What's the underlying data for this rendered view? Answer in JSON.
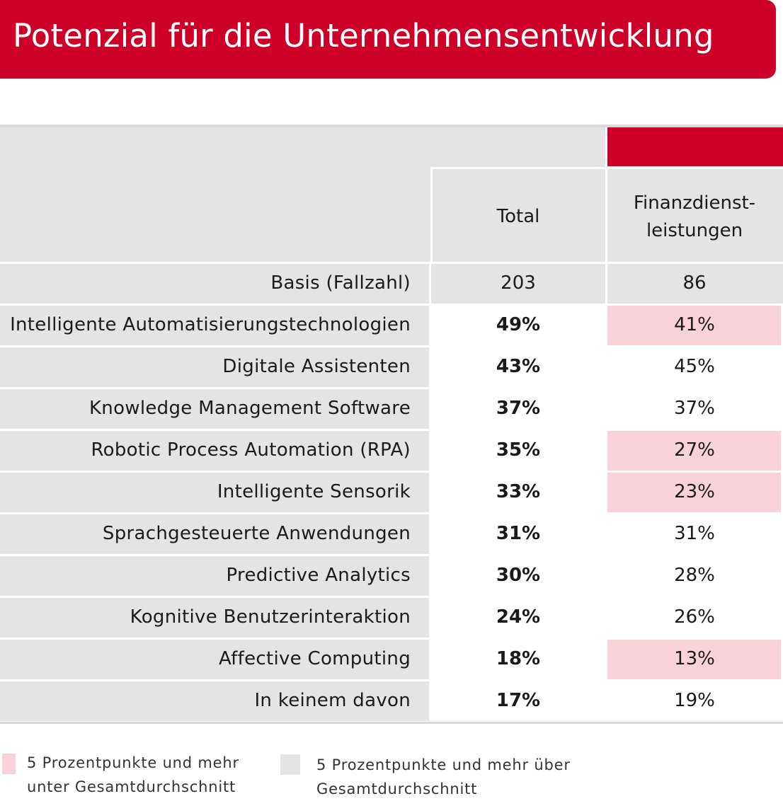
{
  "title": "Potenzial für die Unternehmensentwicklung",
  "colors": {
    "brand": "#cc0029",
    "header_gray": "#e4e4e4",
    "below_highlight": "#f8d2d8",
    "above_highlight": "#e4e4e4"
  },
  "chart_data": {
    "type": "table",
    "columns": [
      "Total",
      "Finanzdienst-\nleistungen"
    ],
    "column_header_lines": [
      [
        "Total"
      ],
      [
        "Finanzdienst-",
        "leistungen"
      ]
    ],
    "base_label": "Basis (Fallzahl)",
    "base_values": [
      "203",
      "86"
    ],
    "rows": [
      {
        "label": "Intelligente Automatisierungstechnologien",
        "total": "49%",
        "fin": "41%",
        "fin_flag": "below"
      },
      {
        "label": "Digitale Assistenten",
        "total": "43%",
        "fin": "45%",
        "fin_flag": "none"
      },
      {
        "label": "Knowledge Management Software",
        "total": "37%",
        "fin": "37%",
        "fin_flag": "none"
      },
      {
        "label": "Robotic Process Automation (RPA)",
        "total": "35%",
        "fin": "27%",
        "fin_flag": "below"
      },
      {
        "label": "Intelligente Sensorik",
        "total": "33%",
        "fin": "23%",
        "fin_flag": "below"
      },
      {
        "label": "Sprachgesteuerte Anwendungen",
        "total": "31%",
        "fin": "31%",
        "fin_flag": "none"
      },
      {
        "label": "Predictive Analytics",
        "total": "30%",
        "fin": "28%",
        "fin_flag": "none"
      },
      {
        "label": "Kognitive Benutzerinteraktion",
        "total": "24%",
        "fin": "26%",
        "fin_flag": "none"
      },
      {
        "label": "Affective Computing",
        "total": "18%",
        "fin": "13%",
        "fin_flag": "below"
      },
      {
        "label": "In keinem davon",
        "total": "17%",
        "fin": "19%",
        "fin_flag": "none"
      }
    ]
  },
  "legend": {
    "below": [
      "5 Prozentpunkte und mehr",
      "unter Gesamtdurchschnitt"
    ],
    "above": [
      "5 Prozentpunkte und mehr über",
      "Gesamtdurchschnitt"
    ]
  }
}
